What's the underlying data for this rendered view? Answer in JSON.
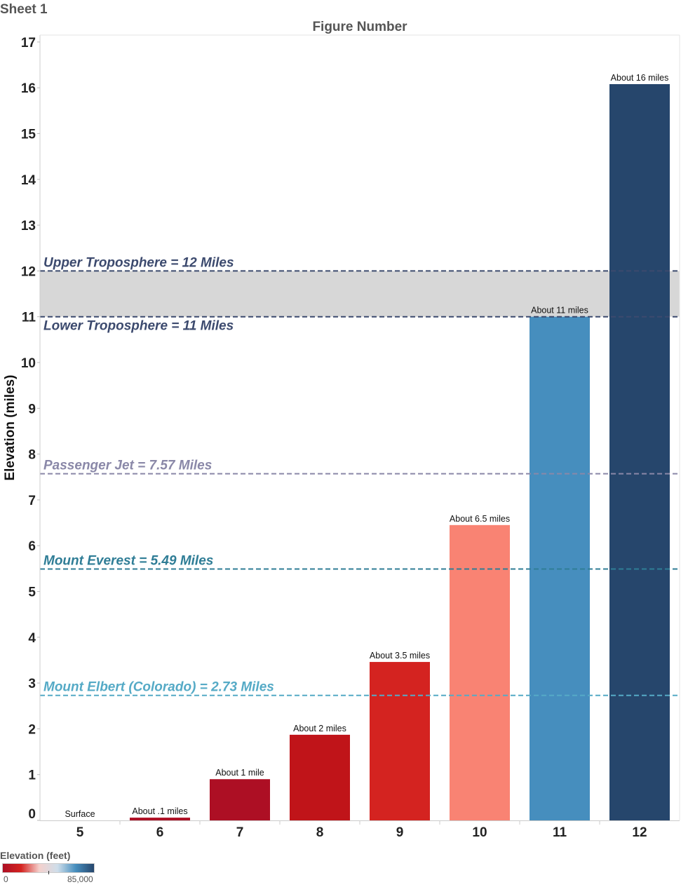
{
  "sheet_title": "Sheet 1",
  "colors": {
    "bar_red_dark": "#ad0f24",
    "bar_red": "#c01419",
    "bar_red_bright": "#d42320",
    "bar_salmon": "#f98373",
    "bar_blue": "#468ebe",
    "bar_navy": "#26466c",
    "troposphere_band": "#d7d7d7",
    "troposphere_line": "#3c4a6e",
    "passenger_jet": "#8a88a8",
    "everest": "#2f7d96",
    "elbert": "#55aac6",
    "axis_text": "#222222",
    "header_text": "#555555"
  },
  "legend": {
    "title": "Elevation (feet)",
    "min_label": "0",
    "max_label": "85,000"
  },
  "chart_data": {
    "type": "bar",
    "title": "Figure Number",
    "xlabel": "Figure Number",
    "ylabel": "Elevation (miles)",
    "ylim": [
      0,
      17
    ],
    "yticks": [
      0,
      1,
      2,
      3,
      4,
      5,
      6,
      7,
      8,
      9,
      10,
      11,
      12,
      13,
      14,
      15,
      16,
      17
    ],
    "grid": false,
    "categories": [
      "5",
      "6",
      "7",
      "8",
      "9",
      "10",
      "11",
      "12"
    ],
    "values": [
      0,
      0.06,
      0.9,
      1.87,
      3.46,
      6.45,
      11.0,
      16.08
    ],
    "data_labels": [
      "Surface",
      "About .1 miles",
      "About 1 mile",
      "About 2 miles",
      "About 3.5 miles",
      "About 6.5 miles",
      "About 11 miles",
      "About 16 miles"
    ],
    "bar_colors": [
      "#ffffff",
      "#ad0f24",
      "#ad0f24",
      "#c01419",
      "#d42320",
      "#f98373",
      "#468ebe",
      "#26466c"
    ],
    "band": {
      "from": 11,
      "to": 12
    },
    "reference_lines": [
      {
        "value": 12,
        "label": "Upper Troposphere = 12 Miles",
        "color": "#3c4a6e",
        "label_position": "above"
      },
      {
        "value": 11,
        "label": "Lower Troposphere = 11 Miles",
        "color": "#3c4a6e",
        "label_position": "below"
      },
      {
        "value": 7.57,
        "label": "Passenger Jet = 7.57 Miles",
        "color": "#8a88a8",
        "label_position": "above"
      },
      {
        "value": 5.49,
        "label": "Mount Everest = 5.49 Miles",
        "color": "#2f7d96",
        "label_position": "above"
      },
      {
        "value": 2.73,
        "label": "Mount Elbert (Colorado) = 2.73 Miles",
        "color": "#55aac6",
        "label_position": "above"
      }
    ]
  }
}
